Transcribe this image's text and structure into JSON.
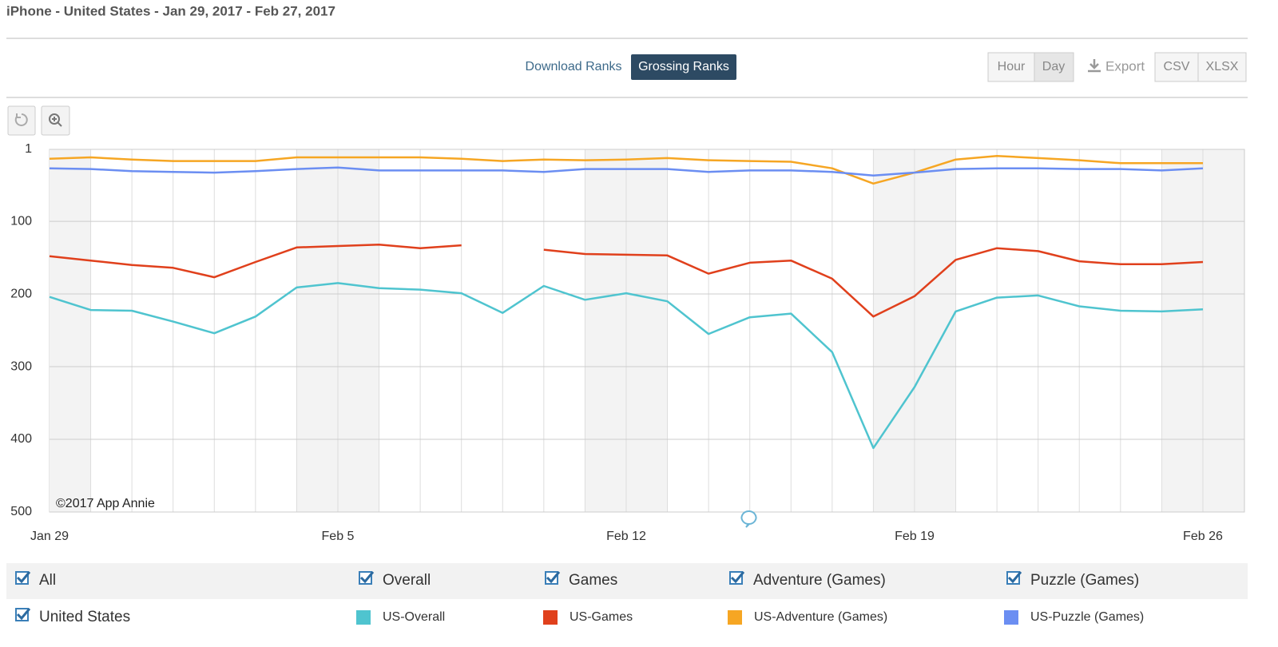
{
  "header": {
    "title": "iPhone - United States - Jan 29, 2017 - Feb 27, 2017"
  },
  "tabs": [
    "Download Ranks",
    "Grossing Ranks"
  ],
  "granularity": [
    "Hour",
    "Day"
  ],
  "export": {
    "label": "Export",
    "formats": [
      "CSV",
      "XLSX"
    ]
  },
  "credit": "©2017 App Annie",
  "filters": [
    "All",
    "Overall",
    "Games",
    "Adventure (Games)",
    "Puzzle (Games)"
  ],
  "region": "United States",
  "chart_data": {
    "type": "line",
    "categories": [
      "Jan 29",
      null,
      null,
      null,
      null,
      null,
      null,
      "Feb 5",
      null,
      null,
      null,
      null,
      null,
      null,
      "Feb 12",
      null,
      null,
      null,
      null,
      null,
      null,
      "Feb 19",
      null,
      null,
      null,
      null,
      null,
      null,
      "Feb 26"
    ],
    "ylim": [
      1,
      500
    ],
    "y_inverted": true,
    "yticks": [
      1,
      100,
      200,
      300,
      400,
      500
    ],
    "grid": true,
    "series": [
      {
        "name": "US-Overall",
        "color": "#4fc4cf",
        "values": [
          204,
          222,
          223,
          238,
          254,
          231,
          191,
          185,
          192,
          194,
          199,
          226,
          189,
          208,
          199,
          210,
          255,
          232,
          227,
          280,
          412,
          328,
          224,
          205,
          202,
          217,
          223,
          224,
          221
        ]
      },
      {
        "name": "US-Games",
        "color": "#e0401c",
        "values": [
          148,
          154,
          160,
          164,
          177,
          156,
          136,
          134,
          132,
          137,
          133,
          null,
          139,
          145,
          146,
          147,
          172,
          157,
          154,
          179,
          231,
          203,
          153,
          137,
          141,
          155,
          159,
          159,
          156
        ]
      },
      {
        "name": "US-Adventure (Games)",
        "color": "#f6a623",
        "values": [
          14,
          12,
          15,
          17,
          17,
          17,
          12,
          12,
          12,
          12,
          14,
          17,
          15,
          16,
          15,
          13,
          16,
          17,
          18,
          27,
          48,
          33,
          15,
          10,
          13,
          16,
          20,
          20,
          20
        ]
      },
      {
        "name": "US-Puzzle (Games)",
        "color": "#6b8ef2",
        "values": [
          27,
          28,
          31,
          32,
          33,
          31,
          28,
          26,
          30,
          30,
          30,
          30,
          32,
          28,
          28,
          28,
          32,
          30,
          30,
          32,
          37,
          33,
          28,
          27,
          27,
          28,
          28,
          30,
          27
        ]
      }
    ]
  }
}
